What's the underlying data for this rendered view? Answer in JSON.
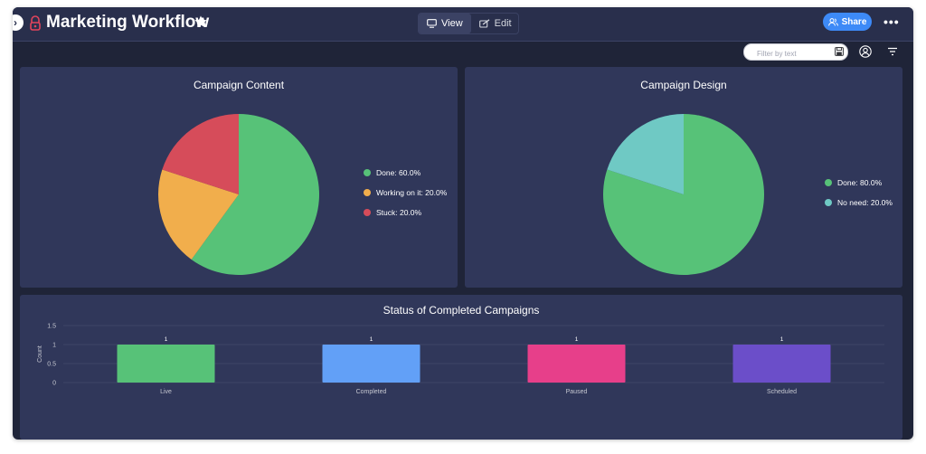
{
  "board": {
    "title": "Marketing Workflow"
  },
  "toolbar": {
    "view_label": "View",
    "edit_label": "Edit",
    "share_label": "Share"
  },
  "filter": {
    "placeholder": "Filter by text"
  },
  "colors": {
    "done": "#57c278",
    "working": "#f1ae4c",
    "stuck": "#d64c5a",
    "no_need": "#6fc9c4",
    "live": "#57c278",
    "completed": "#62a0f7",
    "paused": "#e73f8a",
    "scheduled": "#6b4ec9"
  },
  "panels": {
    "campaign_content": {
      "title": "Campaign Content",
      "legend": [
        "Done: 60.0%",
        "Working on it: 20.0%",
        "Stuck: 20.0%"
      ]
    },
    "campaign_design": {
      "title": "Campaign Design",
      "legend": [
        "Done: 80.0%",
        "No need: 20.0%"
      ]
    },
    "completed_status": {
      "title": "Status of Completed Campaigns"
    }
  },
  "chart_data": [
    {
      "type": "pie",
      "title": "Campaign Content",
      "categories": [
        "Done",
        "Working on it",
        "Stuck"
      ],
      "values": [
        60,
        20,
        20
      ]
    },
    {
      "type": "pie",
      "title": "Campaign Design",
      "categories": [
        "Done",
        "No need"
      ],
      "values": [
        80,
        20
      ]
    },
    {
      "type": "bar",
      "title": "Status of Completed Campaigns",
      "categories": [
        "Live",
        "Completed",
        "Paused",
        "Scheduled"
      ],
      "values": [
        1,
        1,
        1,
        1
      ],
      "ylabel": "Count",
      "ylim": [
        0,
        1.5
      ],
      "yticks": [
        "0",
        "0.5",
        "1",
        "1.5"
      ],
      "data_labels": [
        "1",
        "1",
        "1",
        "1"
      ]
    }
  ]
}
